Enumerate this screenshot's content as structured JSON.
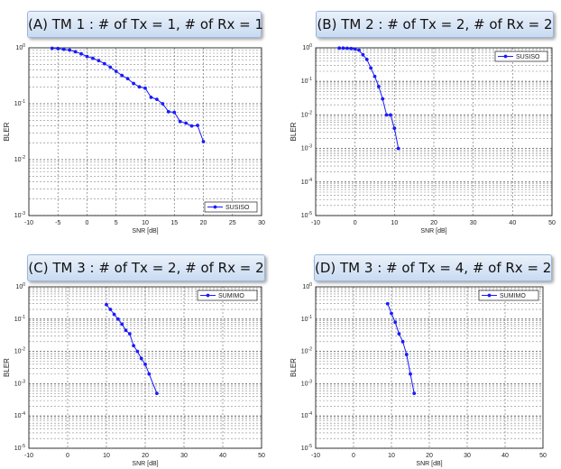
{
  "chart_data": [
    {
      "panel_title": "(A) TM 1 : # of Tx = 1, # of Rx = 1",
      "type": "line",
      "xlabel": "SNR [dB]",
      "ylabel": "BLER",
      "xlim": [
        -10,
        30
      ],
      "xticks": [
        "-10",
        "-5",
        "0",
        "5",
        "10",
        "15",
        "20",
        "25",
        "30"
      ],
      "ylim_exp": [
        -3,
        0
      ],
      "yscale": "log",
      "grid": true,
      "legend_placement": "bottom-right",
      "series": [
        {
          "name": "SUSISO",
          "color": "#1a1aff",
          "x": [
            -6,
            -5,
            -4,
            -3,
            -2,
            -1,
            0,
            1,
            2,
            3,
            4,
            5,
            6,
            7,
            8,
            9,
            10,
            11,
            12,
            13,
            14,
            15,
            16,
            17,
            18,
            19,
            20
          ],
          "y": [
            0.98,
            0.97,
            0.94,
            0.91,
            0.85,
            0.78,
            0.7,
            0.65,
            0.59,
            0.52,
            0.45,
            0.38,
            0.32,
            0.28,
            0.23,
            0.2,
            0.19,
            0.13,
            0.12,
            0.1,
            0.072,
            0.07,
            0.048,
            0.045,
            0.04,
            0.041,
            0.021
          ]
        }
      ]
    },
    {
      "panel_title": "(B) TM 2 : # of Tx = 2, # of Rx = 2",
      "type": "line",
      "xlabel": "SNR [dB]",
      "ylabel": "BLER",
      "xlim": [
        -10,
        50
      ],
      "xticks": [
        "-10",
        "0",
        "10",
        "20",
        "30",
        "40",
        "50"
      ],
      "ylim_exp": [
        -5,
        0
      ],
      "yscale": "log",
      "grid": true,
      "legend_placement": "top-right",
      "series": [
        {
          "name": "SUSISO",
          "color": "#1a1aff",
          "x": [
            -4,
            -3,
            -2,
            -1,
            0,
            1,
            2,
            3,
            4,
            5,
            6,
            7,
            8,
            9,
            10,
            11
          ],
          "y": [
            0.98,
            0.98,
            0.97,
            0.95,
            0.92,
            0.85,
            0.62,
            0.45,
            0.25,
            0.14,
            0.07,
            0.03,
            0.01,
            0.01,
            0.004,
            0.001
          ]
        }
      ]
    },
    {
      "panel_title": "(C) TM 3 : # of Tx = 2, # of Rx = 2",
      "type": "line",
      "xlabel": "SNR [dB]",
      "ylabel": "BLER",
      "xlim": [
        -10,
        50
      ],
      "xticks": [
        "-10",
        "0",
        "10",
        "20",
        "30",
        "40",
        "50"
      ],
      "ylim_exp": [
        -5,
        0
      ],
      "yscale": "log",
      "grid": true,
      "legend_placement": "top-right",
      "series": [
        {
          "name": "SUMIMO",
          "color": "#1a1aff",
          "x": [
            10,
            11,
            12,
            13,
            14,
            15,
            16,
            17,
            18,
            19,
            20,
            21,
            23
          ],
          "y": [
            0.28,
            0.2,
            0.14,
            0.1,
            0.07,
            0.045,
            0.035,
            0.015,
            0.01,
            0.006,
            0.004,
            0.002,
            0.0005
          ]
        }
      ]
    },
    {
      "panel_title": "(D) TM 3 : # of Tx = 4, # of Rx = 2",
      "type": "line",
      "xlabel": "SNR [dB]",
      "ylabel": "BLER",
      "xlim": [
        -10,
        50
      ],
      "xticks": [
        "-10",
        "0",
        "10",
        "20",
        "30",
        "40",
        "50"
      ],
      "ylim_exp": [
        -5,
        0
      ],
      "yscale": "log",
      "grid": true,
      "legend_placement": "top-right",
      "series": [
        {
          "name": "SUMIMO",
          "color": "#1a1aff",
          "x": [
            9,
            10,
            11,
            12,
            13,
            14,
            15,
            16
          ],
          "y": [
            0.3,
            0.15,
            0.08,
            0.035,
            0.02,
            0.008,
            0.002,
            0.0005
          ]
        }
      ]
    }
  ]
}
